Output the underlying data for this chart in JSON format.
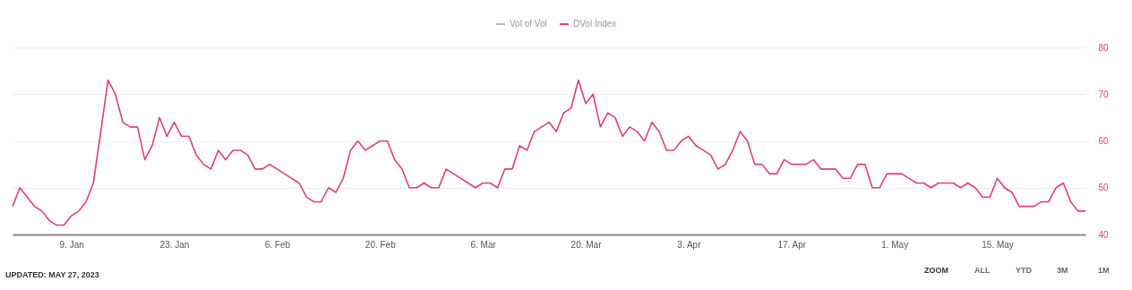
{
  "chart_data": {
    "type": "line",
    "x": [
      "2023-01-01",
      "2023-01-02",
      "2023-01-03",
      "2023-01-04",
      "2023-01-05",
      "2023-01-06",
      "2023-01-07",
      "2023-01-08",
      "2023-01-09",
      "2023-01-10",
      "2023-01-11",
      "2023-01-12",
      "2023-01-13",
      "2023-01-14",
      "2023-01-15",
      "2023-01-16",
      "2023-01-17",
      "2023-01-18",
      "2023-01-19",
      "2023-01-20",
      "2023-01-21",
      "2023-01-22",
      "2023-01-23",
      "2023-01-24",
      "2023-01-25",
      "2023-01-26",
      "2023-01-27",
      "2023-01-28",
      "2023-01-29",
      "2023-01-30",
      "2023-01-31",
      "2023-02-01",
      "2023-02-02",
      "2023-02-03",
      "2023-02-04",
      "2023-02-05",
      "2023-02-06",
      "2023-02-07",
      "2023-02-08",
      "2023-02-09",
      "2023-02-10",
      "2023-02-11",
      "2023-02-12",
      "2023-02-13",
      "2023-02-14",
      "2023-02-15",
      "2023-02-16",
      "2023-02-17",
      "2023-02-18",
      "2023-02-19",
      "2023-02-20",
      "2023-02-21",
      "2023-02-22",
      "2023-02-23",
      "2023-02-24",
      "2023-02-25",
      "2023-02-26",
      "2023-02-27",
      "2023-02-28",
      "2023-03-01",
      "2023-03-02",
      "2023-03-03",
      "2023-03-04",
      "2023-03-05",
      "2023-03-06",
      "2023-03-07",
      "2023-03-08",
      "2023-03-09",
      "2023-03-10",
      "2023-03-11",
      "2023-03-12",
      "2023-03-13",
      "2023-03-14",
      "2023-03-15",
      "2023-03-16",
      "2023-03-17",
      "2023-03-18",
      "2023-03-19",
      "2023-03-20",
      "2023-03-21",
      "2023-03-22",
      "2023-03-23",
      "2023-03-24",
      "2023-03-25",
      "2023-03-26",
      "2023-03-27",
      "2023-03-28",
      "2023-03-29",
      "2023-03-30",
      "2023-03-31",
      "2023-04-01",
      "2023-04-02",
      "2023-04-03",
      "2023-04-04",
      "2023-04-05",
      "2023-04-06",
      "2023-04-07",
      "2023-04-08",
      "2023-04-09",
      "2023-04-10",
      "2023-04-11",
      "2023-04-12",
      "2023-04-13",
      "2023-04-14",
      "2023-04-15",
      "2023-04-16",
      "2023-04-17",
      "2023-04-18",
      "2023-04-19",
      "2023-04-20",
      "2023-04-21",
      "2023-04-22",
      "2023-04-23",
      "2023-04-24",
      "2023-04-25",
      "2023-04-26",
      "2023-04-27",
      "2023-04-28",
      "2023-04-29",
      "2023-04-30",
      "2023-05-01",
      "2023-05-02",
      "2023-05-03",
      "2023-05-04",
      "2023-05-05",
      "2023-05-06",
      "2023-05-07",
      "2023-05-08",
      "2023-05-09",
      "2023-05-10",
      "2023-05-11",
      "2023-05-12",
      "2023-05-13",
      "2023-05-14",
      "2023-05-15",
      "2023-05-16",
      "2023-05-17",
      "2023-05-18",
      "2023-05-19",
      "2023-05-20",
      "2023-05-21",
      "2023-05-22",
      "2023-05-23",
      "2023-05-24",
      "2023-05-25",
      "2023-05-26",
      "2023-05-27"
    ],
    "series": [
      {
        "name": "Vol of Vol",
        "color": "#bbbbbb",
        "values": [
          null,
          null,
          null,
          null,
          null,
          null,
          null,
          null,
          null,
          null,
          null,
          null,
          null,
          null,
          null,
          null,
          null,
          null,
          null,
          null,
          null,
          null,
          null,
          null,
          null,
          null,
          null,
          null,
          null,
          null,
          null,
          null,
          null,
          null,
          null,
          null,
          null,
          null,
          null,
          null,
          null,
          null,
          null,
          null,
          null,
          null,
          null,
          null,
          null,
          null,
          null,
          null,
          null,
          null,
          null,
          null,
          null,
          null,
          null,
          null,
          null,
          null,
          null,
          null,
          null,
          null,
          null,
          null,
          null,
          null,
          null,
          null,
          null,
          null,
          null,
          null,
          null,
          null,
          null,
          null,
          null,
          null,
          null,
          null,
          null,
          null,
          null,
          null,
          null,
          null,
          null,
          null,
          null,
          null,
          null,
          null,
          null,
          null,
          null,
          null,
          null,
          null,
          null,
          null,
          null,
          null,
          null,
          null,
          null,
          null,
          null,
          null,
          null,
          null,
          null,
          null,
          null,
          null,
          null,
          null,
          null,
          null,
          null,
          null,
          null,
          null,
          null,
          null,
          null,
          null,
          null,
          null,
          null,
          null,
          null,
          null,
          null,
          null,
          null,
          null,
          null,
          null,
          null,
          null,
          null,
          null,
          null
        ]
      },
      {
        "name": "DVol Index",
        "color": "#e0406a",
        "values": [
          46,
          50,
          48,
          46,
          45,
          43,
          42,
          42,
          44,
          45,
          47,
          51,
          62,
          73,
          70,
          64,
          63,
          63,
          56,
          59,
          65,
          61,
          64,
          61,
          61,
          57,
          55,
          54,
          58,
          56,
          58,
          58,
          57,
          54,
          54,
          55,
          54,
          53,
          52,
          51,
          48,
          47,
          47,
          50,
          49,
          52,
          58,
          60,
          58,
          59,
          60,
          60,
          56,
          54,
          50,
          50,
          51,
          50,
          50,
          54,
          53,
          52,
          51,
          50,
          51,
          51,
          50,
          54,
          54,
          59,
          58,
          62,
          63,
          64,
          62,
          66,
          67,
          73,
          68,
          70,
          63,
          66,
          65,
          61,
          63,
          62,
          60,
          64,
          62,
          58,
          58,
          60,
          61,
          59,
          58,
          57,
          54,
          55,
          58,
          62,
          60,
          55,
          55,
          53,
          53,
          56,
          55,
          55,
          55,
          56,
          54,
          54,
          54,
          52,
          52,
          55,
          55,
          50,
          50,
          53,
          53,
          53,
          52,
          51,
          51,
          50,
          51,
          51,
          51,
          50,
          51,
          50,
          48,
          48,
          52,
          50,
          49,
          46,
          46,
          46,
          47,
          47,
          50,
          51,
          47,
          45,
          45
        ]
      }
    ],
    "xlim": [
      "2023-01-01",
      "2023-05-27"
    ],
    "xticks": [
      {
        "value": "2023-01-09",
        "label": "9. Jan"
      },
      {
        "value": "2023-01-23",
        "label": "23. Jan"
      },
      {
        "value": "2023-02-06",
        "label": "6. Feb"
      },
      {
        "value": "2023-02-20",
        "label": "20. Feb"
      },
      {
        "value": "2023-03-06",
        "label": "6. Mar"
      },
      {
        "value": "2023-03-20",
        "label": "20. Mar"
      },
      {
        "value": "2023-04-03",
        "label": "3. Apr"
      },
      {
        "value": "2023-04-17",
        "label": "17. Apr"
      },
      {
        "value": "2023-05-01",
        "label": "1. May"
      },
      {
        "value": "2023-05-15",
        "label": "15. May"
      }
    ],
    "ylim": [
      40,
      80
    ],
    "yticks": [
      40,
      50,
      60,
      70,
      80
    ],
    "grid": "y",
    "legend": "top",
    "annotations": [
      "UPDATED: MAY 27, 2023",
      "ZOOM",
      "ALL",
      "YTD",
      "3M",
      "1M"
    ]
  }
}
